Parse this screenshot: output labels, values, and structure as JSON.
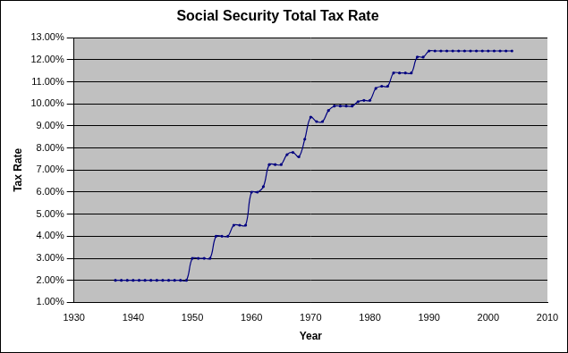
{
  "chart_data": {
    "type": "line",
    "title": "Social Security Total Tax Rate",
    "x_label": "Year",
    "y_label": "Tax Rate",
    "x": [
      1937,
      1938,
      1939,
      1940,
      1941,
      1942,
      1943,
      1944,
      1945,
      1946,
      1947,
      1948,
      1949,
      1950,
      1951,
      1952,
      1953,
      1954,
      1955,
      1956,
      1957,
      1958,
      1959,
      1960,
      1961,
      1962,
      1963,
      1964,
      1965,
      1966,
      1967,
      1968,
      1969,
      1970,
      1971,
      1972,
      1973,
      1974,
      1975,
      1976,
      1977,
      1978,
      1979,
      1980,
      1981,
      1982,
      1983,
      1984,
      1985,
      1986,
      1987,
      1988,
      1989,
      1990,
      1991,
      1992,
      1993,
      1994,
      1995,
      1996,
      1997,
      1998,
      1999,
      2000,
      2001,
      2002,
      2003,
      2004
    ],
    "values": [
      2.0,
      2.0,
      2.0,
      2.0,
      2.0,
      2.0,
      2.0,
      2.0,
      2.0,
      2.0,
      2.0,
      2.0,
      2.0,
      3.0,
      3.0,
      3.0,
      3.0,
      4.0,
      4.0,
      4.0,
      4.5,
      4.5,
      4.5,
      6.0,
      6.0,
      6.25,
      7.25,
      7.25,
      7.25,
      7.7,
      7.8,
      7.6,
      8.4,
      9.4,
      9.2,
      9.2,
      9.7,
      9.9,
      9.9,
      9.9,
      9.9,
      10.1,
      10.16,
      10.16,
      10.7,
      10.8,
      10.8,
      11.4,
      11.4,
      11.4,
      11.4,
      12.12,
      12.12,
      12.4,
      12.4,
      12.4,
      12.4,
      12.4,
      12.4,
      12.4,
      12.4,
      12.4,
      12.4,
      12.4,
      12.4,
      12.4,
      12.4,
      12.4
    ],
    "color": "#000080",
    "marker": "circle",
    "line_style": "solid",
    "xlim": [
      1930,
      2010
    ],
    "xticks": [
      1930,
      1940,
      1950,
      1960,
      1970,
      1980,
      1990,
      2000,
      2010
    ],
    "ylim": [
      1,
      13
    ],
    "yticks": [
      {
        "value": 1,
        "label": "1.00%"
      },
      {
        "value": 2,
        "label": "2.00%"
      },
      {
        "value": 3,
        "label": "3.00%"
      },
      {
        "value": 4,
        "label": "4.00%"
      },
      {
        "value": 5,
        "label": "5.00%"
      },
      {
        "value": 6,
        "label": "6.00%"
      },
      {
        "value": 7,
        "label": "7.00%"
      },
      {
        "value": 8,
        "label": "8.00%"
      },
      {
        "value": 9,
        "label": "9.00%"
      },
      {
        "value": 10,
        "label": "10.00%"
      },
      {
        "value": 11,
        "label": "11.00%"
      },
      {
        "value": 12,
        "label": "12.00%"
      },
      {
        "value": 13,
        "label": "13.00%"
      }
    ],
    "grid": true
  }
}
